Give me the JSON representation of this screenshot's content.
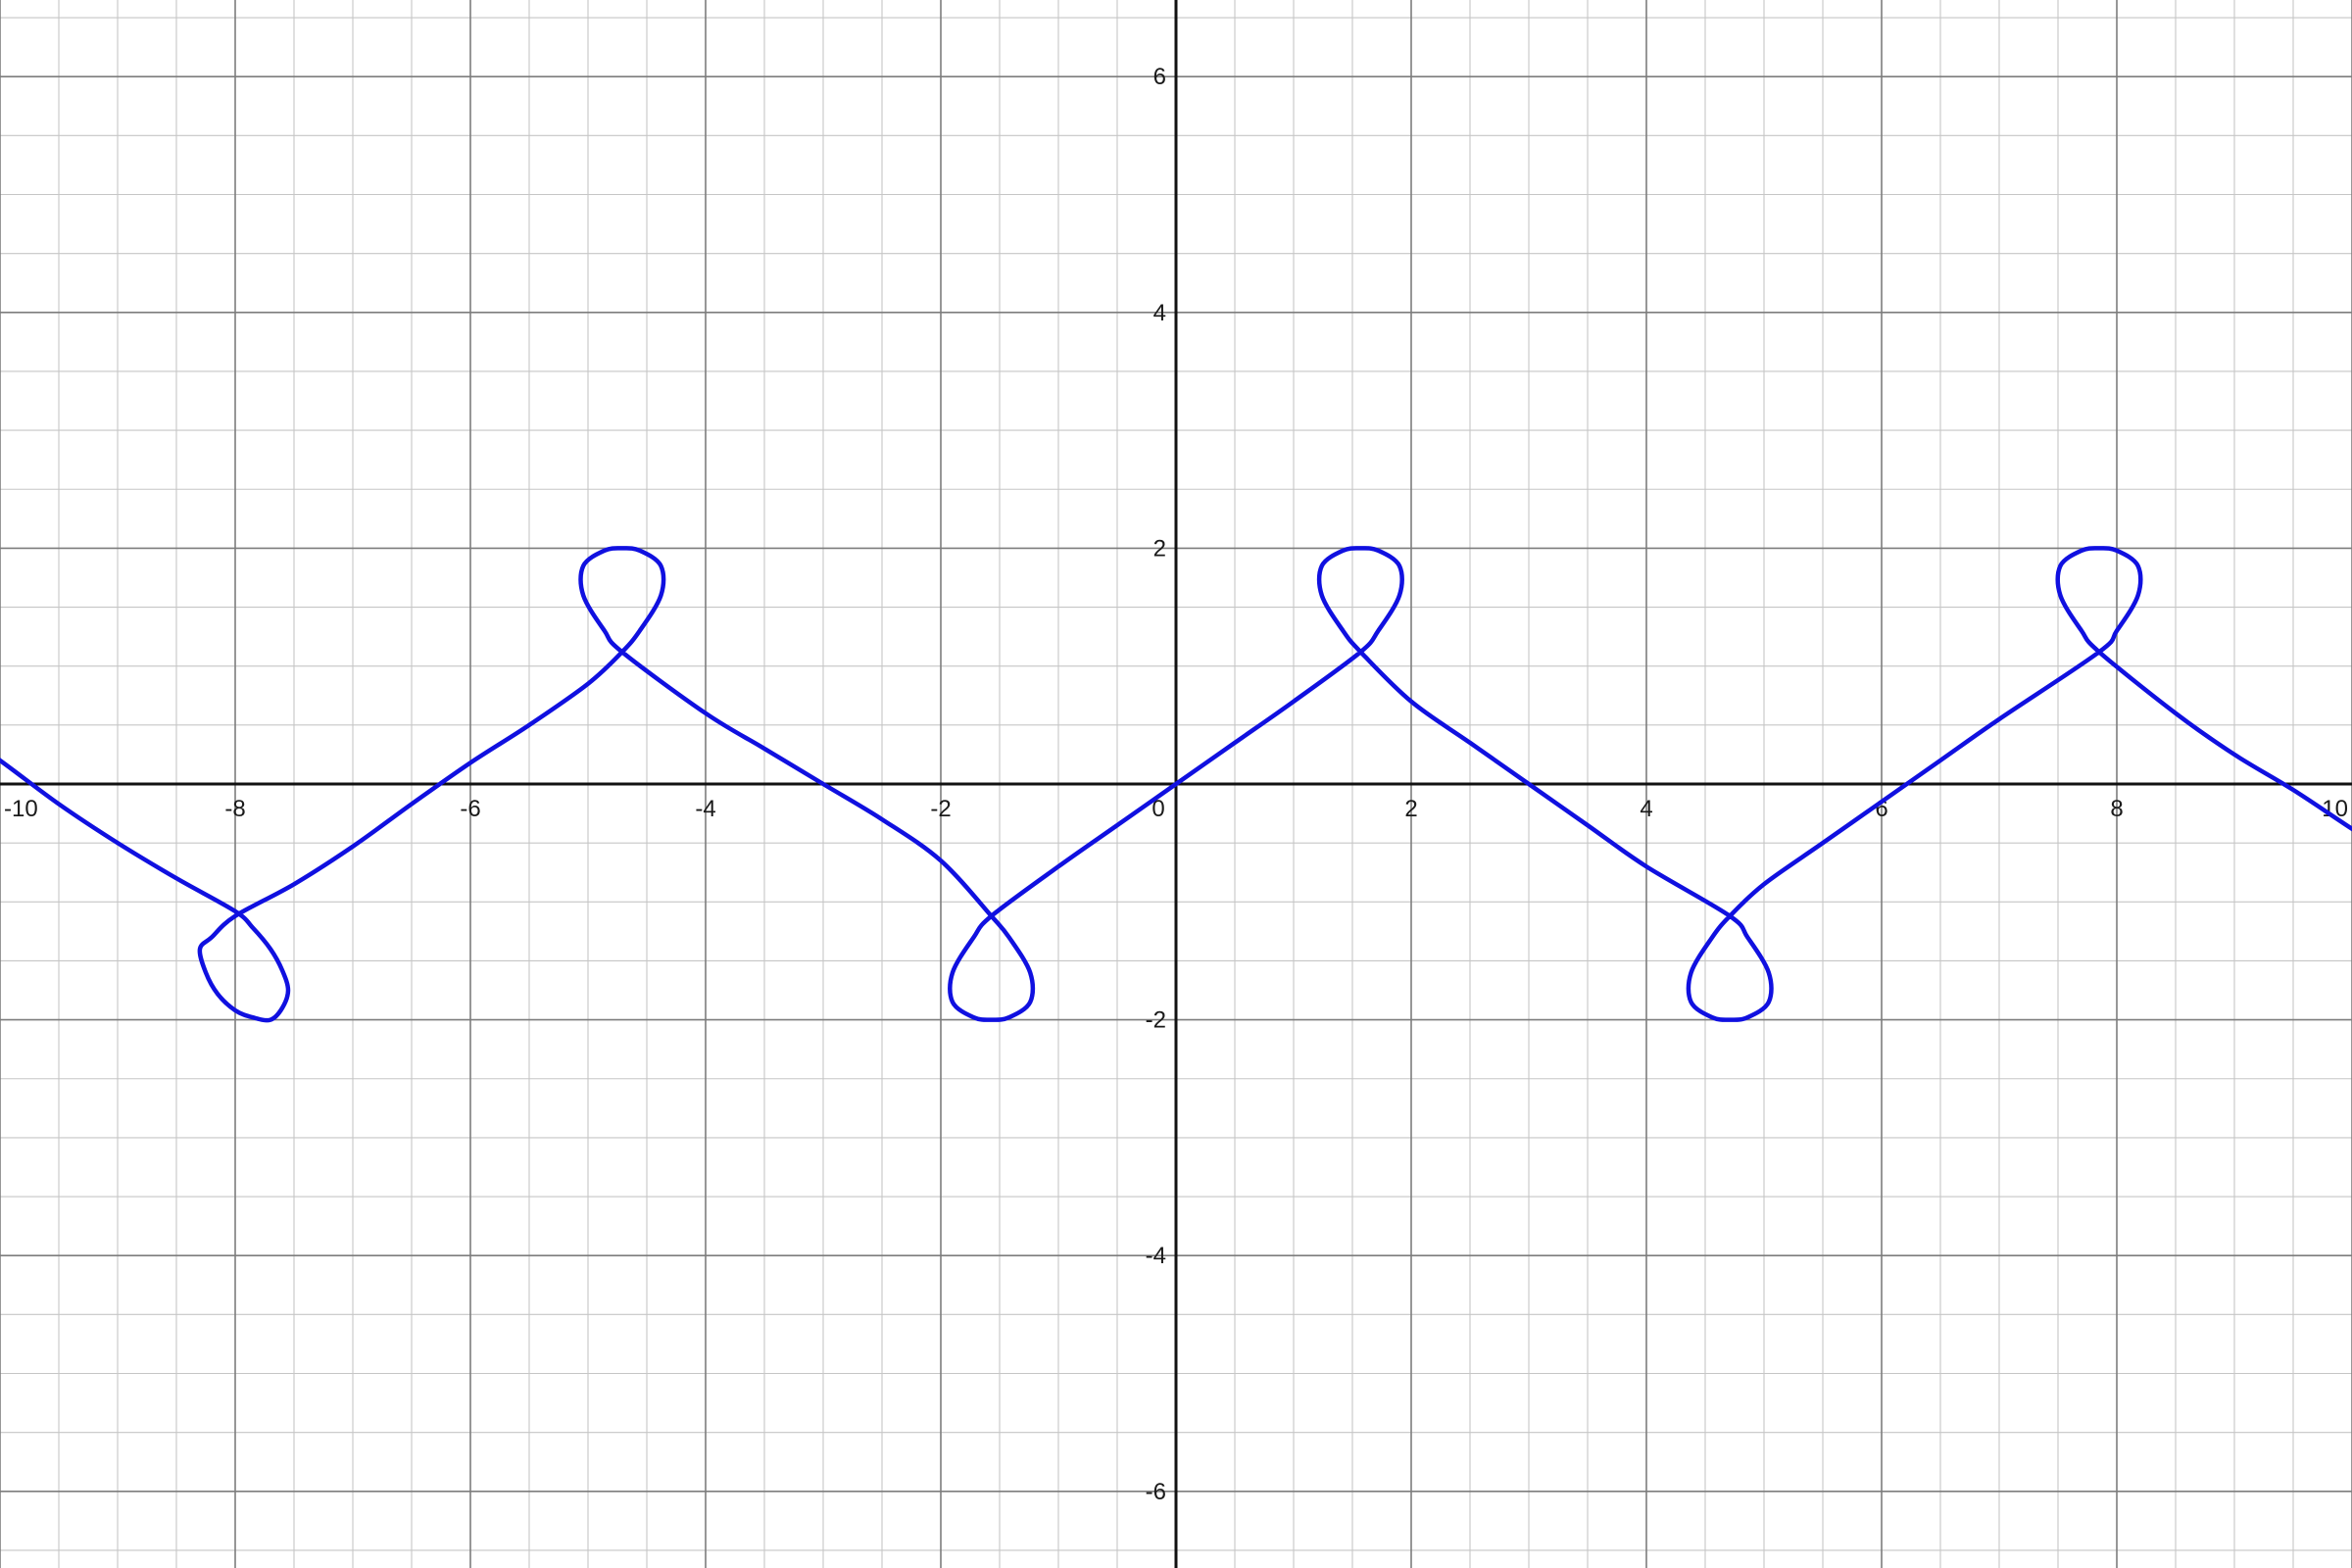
{
  "chart_data": {
    "type": "line",
    "title": "",
    "xlabel": "",
    "ylabel": "",
    "xlim": [
      -10,
      10
    ],
    "ylim": [
      -6.65,
      6.65
    ],
    "grid": true,
    "minor_grid_step": 0.5,
    "major_grid_step": 2,
    "x_ticks": [
      -10,
      -8,
      -6,
      -4,
      -2,
      0,
      2,
      4,
      6,
      8,
      10
    ],
    "x_tick_labels": [
      "-10",
      "-8",
      "-6",
      "-4",
      "-2",
      "0",
      "2",
      "4",
      "6",
      "8",
      "10"
    ],
    "y_ticks": [
      6,
      4,
      2,
      -2,
      -4,
      -6
    ],
    "y_tick_labels": [
      "6",
      "4",
      "2",
      "-2",
      "-4",
      "-6"
    ],
    "colors": {
      "curve": "#1010e0",
      "axis": "#111111",
      "major_grid": "#7d7d7d",
      "minor_grid": "#c6c6c6"
    },
    "series": [
      {
        "description": "looping curve",
        "x": [
          -10.5,
          -10,
          -9.5,
          -9.0,
          -8.5,
          -8.0,
          -7.85,
          -7.7,
          -7.6,
          -7.55,
          -7.6,
          -7.7,
          -7.85,
          -8.0,
          -8.15,
          -8.25,
          -8.3,
          -8.2,
          -8.0,
          -7.5,
          -7.0,
          -6.5,
          -6.0,
          -5.5,
          -5.0,
          -4.71,
          -4.56,
          -4.38,
          -4.38,
          -4.56,
          -4.71,
          -4.86,
          -5.04,
          -5.04,
          -4.86,
          -4.71,
          -4.0,
          -3.5,
          -3.0,
          -2.5,
          -2.0,
          -1.57,
          -1.42,
          -1.24,
          -1.24,
          -1.42,
          -1.57,
          -1.72,
          -1.9,
          -1.9,
          -1.72,
          -1.57,
          -1.0,
          -0.5,
          0,
          0.5,
          1.0,
          1.57,
          1.72,
          1.9,
          1.9,
          1.72,
          1.57,
          1.42,
          1.24,
          1.24,
          1.42,
          1.57,
          2.0,
          2.5,
          3.0,
          3.5,
          4.0,
          4.71,
          4.86,
          5.04,
          5.04,
          4.86,
          4.71,
          4.56,
          4.38,
          4.38,
          4.56,
          4.71,
          5.0,
          5.5,
          6.0,
          6.5,
          7.0,
          7.85,
          8.0,
          8.18,
          8.18,
          8.0,
          7.85,
          7.7,
          7.52,
          7.52,
          7.7,
          7.85,
          8.5,
          9.0,
          9.5,
          10.0,
          10.5
        ],
        "y": [
          0.55,
          0.2,
          -0.17,
          -0.5,
          -0.8,
          -1.08,
          -1.22,
          -1.4,
          -1.58,
          -1.75,
          -1.9,
          -2.0,
          -1.98,
          -1.92,
          -1.78,
          -1.6,
          -1.4,
          -1.3,
          -1.12,
          -0.85,
          -0.53,
          -0.17,
          0.18,
          0.5,
          0.85,
          1.12,
          1.3,
          1.6,
          1.85,
          1.98,
          2.0,
          1.98,
          1.85,
          1.6,
          1.3,
          1.12,
          0.6,
          0.3,
          0,
          -0.3,
          -0.65,
          -1.12,
          -1.3,
          -1.6,
          -1.85,
          -1.98,
          -2.0,
          -1.98,
          -1.85,
          -1.6,
          -1.3,
          -1.12,
          -0.7,
          -0.35,
          0,
          0.35,
          0.7,
          1.12,
          1.3,
          1.6,
          1.85,
          1.98,
          2.0,
          1.98,
          1.85,
          1.6,
          1.3,
          1.12,
          0.7,
          0.35,
          0,
          -0.35,
          -0.7,
          -1.12,
          -1.3,
          -1.6,
          -1.85,
          -1.98,
          -2.0,
          -1.98,
          -1.85,
          -1.6,
          -1.3,
          -1.12,
          -0.85,
          -0.5,
          -0.15,
          0.2,
          0.55,
          1.12,
          1.3,
          1.6,
          1.85,
          1.98,
          2.0,
          1.98,
          1.85,
          1.6,
          1.3,
          1.12,
          0.6,
          0.25,
          -0.05,
          -0.38,
          -0.7
        ]
      }
    ]
  }
}
